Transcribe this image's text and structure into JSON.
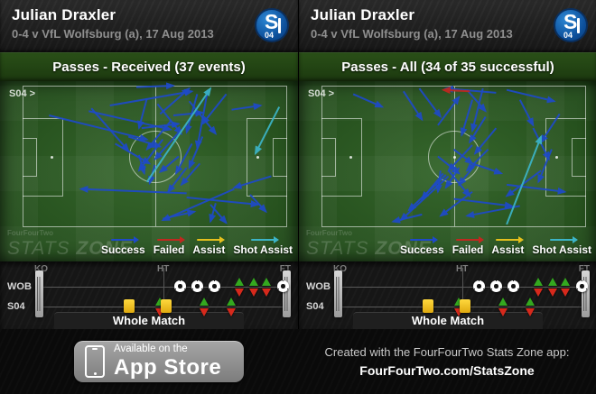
{
  "colors": {
    "s": "#1e4ac8",
    "f": "#c0281f",
    "a": "#e5c01d",
    "x": "#3cb4c7",
    "pitch_green": "#2b5e21",
    "card_yellow": "#f0c419",
    "sub_on_green": "#34a81f",
    "sub_off_red": "#d6291c",
    "badge_blue": "#0d4f9a"
  },
  "arrow_types": {
    "s": "Success",
    "f": "Failed",
    "a": "Assist",
    "x": "Shot Assist"
  },
  "legend": [
    {
      "label": "Success",
      "type": "s"
    },
    {
      "label": "Failed",
      "type": "f"
    },
    {
      "label": "Assist",
      "type": "a"
    },
    {
      "label": "Shot Assist",
      "type": "x"
    }
  ],
  "watermark": {
    "small": "FourFourTwo",
    "stats": "STATS",
    "zone": "ZONE"
  },
  "panels": [
    {
      "header": {
        "title": "Julian Draxler",
        "subtitle": "0-4 v VfL Wolfsburg (a), 17 Aug 2013"
      },
      "badge": {
        "letter": "S",
        "number": "04"
      },
      "chart_title": "Passes - Received (37 events)",
      "pitch_label": "S04 >",
      "arrows": [
        [
          43,
          1,
          57,
          0,
          "s"
        ],
        [
          52,
          20,
          63,
          2,
          "s"
        ],
        [
          33,
          14,
          64,
          4,
          "s"
        ],
        [
          26,
          16,
          40,
          46,
          "s"
        ],
        [
          25,
          18,
          56,
          31,
          "s"
        ],
        [
          10,
          21,
          47,
          38,
          "s"
        ],
        [
          47,
          9,
          44,
          30,
          "s"
        ],
        [
          66,
          6,
          62,
          33,
          "s"
        ],
        [
          70,
          3,
          66,
          44,
          "s"
        ],
        [
          77,
          6,
          68,
          27,
          "s"
        ],
        [
          63,
          11,
          73,
          34,
          "s"
        ],
        [
          79,
          17,
          90,
          14,
          "s"
        ],
        [
          45,
          30,
          59,
          27,
          "s"
        ],
        [
          40,
          36,
          52,
          43,
          "s"
        ],
        [
          56,
          25,
          47,
          45,
          "s"
        ],
        [
          60,
          31,
          50,
          52,
          "s"
        ],
        [
          35,
          41,
          48,
          55,
          "s"
        ],
        [
          53,
          38,
          44,
          60,
          "s"
        ],
        [
          44,
          49,
          46,
          62,
          "s"
        ],
        [
          50,
          56,
          48,
          69,
          "s"
        ],
        [
          59,
          50,
          52,
          61,
          "s"
        ],
        [
          64,
          41,
          58,
          62,
          "s"
        ],
        [
          68,
          36,
          63,
          58,
          "s"
        ],
        [
          62,
          58,
          55,
          75,
          "s"
        ],
        [
          67,
          55,
          60,
          70,
          "s"
        ],
        [
          62,
          76,
          22,
          73,
          "s"
        ],
        [
          62,
          79,
          89,
          84,
          "s"
        ],
        [
          94,
          64,
          80,
          72,
          "s"
        ],
        [
          80,
          73,
          53,
          95,
          "s"
        ],
        [
          53,
          94,
          65,
          89,
          "s"
        ],
        [
          73,
          83,
          71,
          96,
          "s"
        ],
        [
          71,
          84,
          77,
          97,
          "s"
        ],
        [
          86,
          77,
          92,
          89,
          "s"
        ],
        [
          57,
          21,
          68,
          19,
          "s"
        ],
        [
          51,
          13,
          60,
          34,
          "s"
        ],
        [
          47,
          68,
          71,
          2,
          "x"
        ],
        [
          97,
          15,
          88,
          48,
          "x"
        ]
      ]
    },
    {
      "header": {
        "title": "Julian Draxler",
        "subtitle": "0-4 v VfL Wolfsburg (a), 17 Aug 2013"
      },
      "badge": {
        "letter": "S",
        "number": "04"
      },
      "chart_title": "Passes - All (34 of 35 successful)",
      "pitch_label": "S04 >",
      "arrows": [
        [
          12,
          6,
          23,
          15,
          "s"
        ],
        [
          31,
          4,
          38,
          24,
          "s"
        ],
        [
          66,
          5,
          47,
          2,
          "s"
        ],
        [
          37,
          2,
          45,
          22,
          "s"
        ],
        [
          61,
          2,
          57,
          32,
          "s"
        ],
        [
          70,
          3,
          88,
          11,
          "s"
        ],
        [
          57,
          10,
          53,
          35,
          "s"
        ],
        [
          62,
          22,
          56,
          40,
          "s"
        ],
        [
          66,
          30,
          58,
          48,
          "s"
        ],
        [
          50,
          45,
          57,
          55,
          "s"
        ],
        [
          44,
          50,
          52,
          62,
          "s"
        ],
        [
          57,
          42,
          48,
          60,
          "s"
        ],
        [
          63,
          45,
          55,
          60,
          "s"
        ],
        [
          45,
          60,
          44,
          75,
          "s"
        ],
        [
          46,
          62,
          38,
          80,
          "s"
        ],
        [
          47,
          63,
          33,
          88,
          "s"
        ],
        [
          48,
          64,
          30,
          95,
          "s"
        ],
        [
          48,
          60,
          56,
          78,
          "s"
        ],
        [
          57,
          75,
          45,
          92,
          "s"
        ],
        [
          38,
          91,
          27,
          96,
          "s"
        ],
        [
          50,
          80,
          72,
          85,
          "s"
        ],
        [
          75,
          85,
          55,
          92,
          "s"
        ],
        [
          70,
          70,
          92,
          75,
          "s"
        ],
        [
          83,
          60,
          70,
          78,
          "s"
        ],
        [
          87,
          45,
          82,
          68,
          "s"
        ],
        [
          80,
          30,
          86,
          52,
          "s"
        ],
        [
          90,
          20,
          83,
          40,
          "s"
        ],
        [
          75,
          10,
          80,
          28,
          "s"
        ],
        [
          55,
          3,
          62,
          18,
          "s"
        ],
        [
          57,
          55,
          68,
          62,
          "s"
        ],
        [
          52,
          58,
          47,
          72,
          "s"
        ],
        [
          58,
          56,
          52,
          70,
          "s"
        ],
        [
          44,
          28,
          52,
          8,
          "s"
        ],
        [
          56,
          4,
          46,
          3,
          "f"
        ],
        [
          70,
          98,
          83,
          36,
          "x"
        ]
      ]
    }
  ],
  "timeline": {
    "labels": {
      "ko": "KO",
      "ht": "HT",
      "ft": "FT"
    },
    "rows": [
      {
        "label": "WOB",
        "events": [
          {
            "t": 56.5,
            "type": "goal"
          },
          {
            "t": 63.5,
            "type": "goal"
          },
          {
            "t": 70.5,
            "type": "goal"
          },
          {
            "t": 80.5,
            "type": "sub"
          },
          {
            "t": 86.5,
            "type": "sub"
          },
          {
            "t": 91.5,
            "type": "sub"
          },
          {
            "t": 98,
            "type": "goal"
          }
        ]
      },
      {
        "label": "S04",
        "events": [
          {
            "t": 36,
            "type": "card"
          },
          {
            "t": 48.5,
            "type": "sub"
          },
          {
            "t": 51,
            "type": "card"
          },
          {
            "t": 66.5,
            "type": "sub"
          },
          {
            "t": 77.5,
            "type": "sub"
          }
        ]
      }
    ],
    "button": "Whole Match"
  },
  "footer": {
    "badge_small": "Available on the",
    "badge_large": "App Store",
    "created_line1": "Created with the FourFourTwo Stats Zone app:",
    "created_line2": "FourFourTwo.com/StatsZone"
  }
}
